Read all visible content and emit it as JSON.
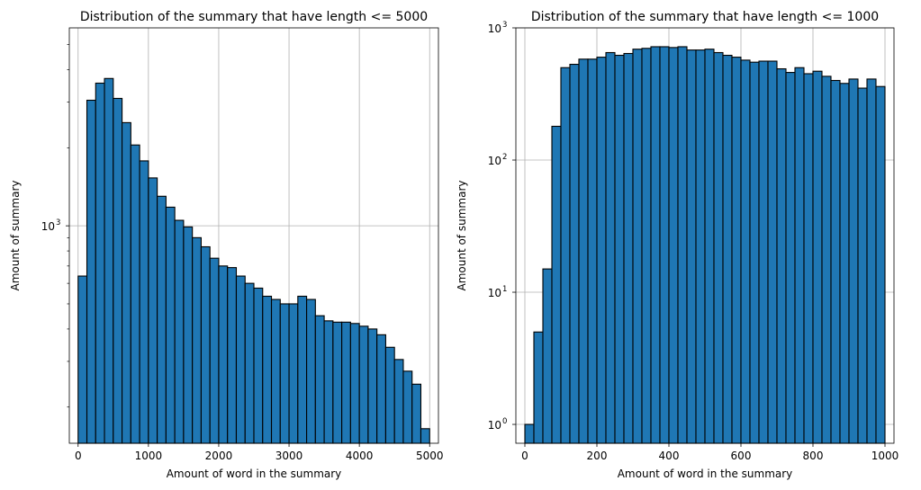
{
  "chart_data": [
    {
      "type": "bar",
      "title": "Distribution of the summary that have length <= 5000",
      "xlabel": "Amount of word in the summary",
      "ylabel": "Amount of summary",
      "yscale": "log",
      "grid": true,
      "bar_color": "#1f77b4",
      "edge_color": "#000000",
      "xlim": [
        -125,
        5125
      ],
      "ylim": [
        145,
        5800
      ],
      "xticks": [
        0,
        1000,
        2000,
        3000,
        4000,
        5000
      ],
      "xtick_labels": [
        "0",
        "1000",
        "2000",
        "3000",
        "4000",
        "5000"
      ],
      "yticks_major": [
        1000
      ],
      "ytick_labels": [
        "10",
        "3"
      ],
      "yticks_minor": [
        200,
        300,
        400,
        500,
        600,
        700,
        800,
        900,
        2000,
        3000,
        4000,
        5000
      ],
      "bins": {
        "start": 0,
        "width": 125,
        "count": 40
      },
      "values": [
        640,
        3050,
        3550,
        3700,
        3100,
        2500,
        2050,
        1780,
        1530,
        1300,
        1180,
        1050,
        990,
        900,
        830,
        750,
        700,
        690,
        640,
        600,
        575,
        535,
        520,
        500,
        500,
        535,
        520,
        450,
        430,
        425,
        425,
        420,
        410,
        400,
        380,
        340,
        305,
        275,
        245,
        165
      ]
    },
    {
      "type": "bar",
      "title": "Distribution of the summary that have length <= 1000",
      "xlabel": "Amount of word in the summary",
      "ylabel": "Amount of summary",
      "yscale": "log",
      "grid": true,
      "bar_color": "#1f77b4",
      "edge_color": "#000000",
      "xlim": [
        -25,
        1025
      ],
      "ylim": [
        0.72,
        1000
      ],
      "xticks": [
        0,
        200,
        400,
        600,
        800,
        1000
      ],
      "xtick_labels": [
        "0",
        "200",
        "400",
        "600",
        "800",
        "1000"
      ],
      "yticks_major": [
        1,
        10,
        100,
        1000
      ],
      "ytick_labels": [
        [
          "10",
          "0"
        ],
        [
          "10",
          "1"
        ],
        [
          "10",
          "2"
        ],
        [
          "10",
          "3"
        ]
      ],
      "bins": {
        "start": 0,
        "width": 25,
        "count": 40
      },
      "values": [
        1,
        5,
        15,
        180,
        500,
        530,
        580,
        580,
        600,
        650,
        620,
        640,
        690,
        700,
        720,
        720,
        710,
        720,
        680,
        680,
        690,
        650,
        620,
        600,
        570,
        550,
        560,
        560,
        490,
        460,
        500,
        450,
        470,
        430,
        400,
        380,
        410,
        350,
        410,
        360
      ]
    }
  ]
}
